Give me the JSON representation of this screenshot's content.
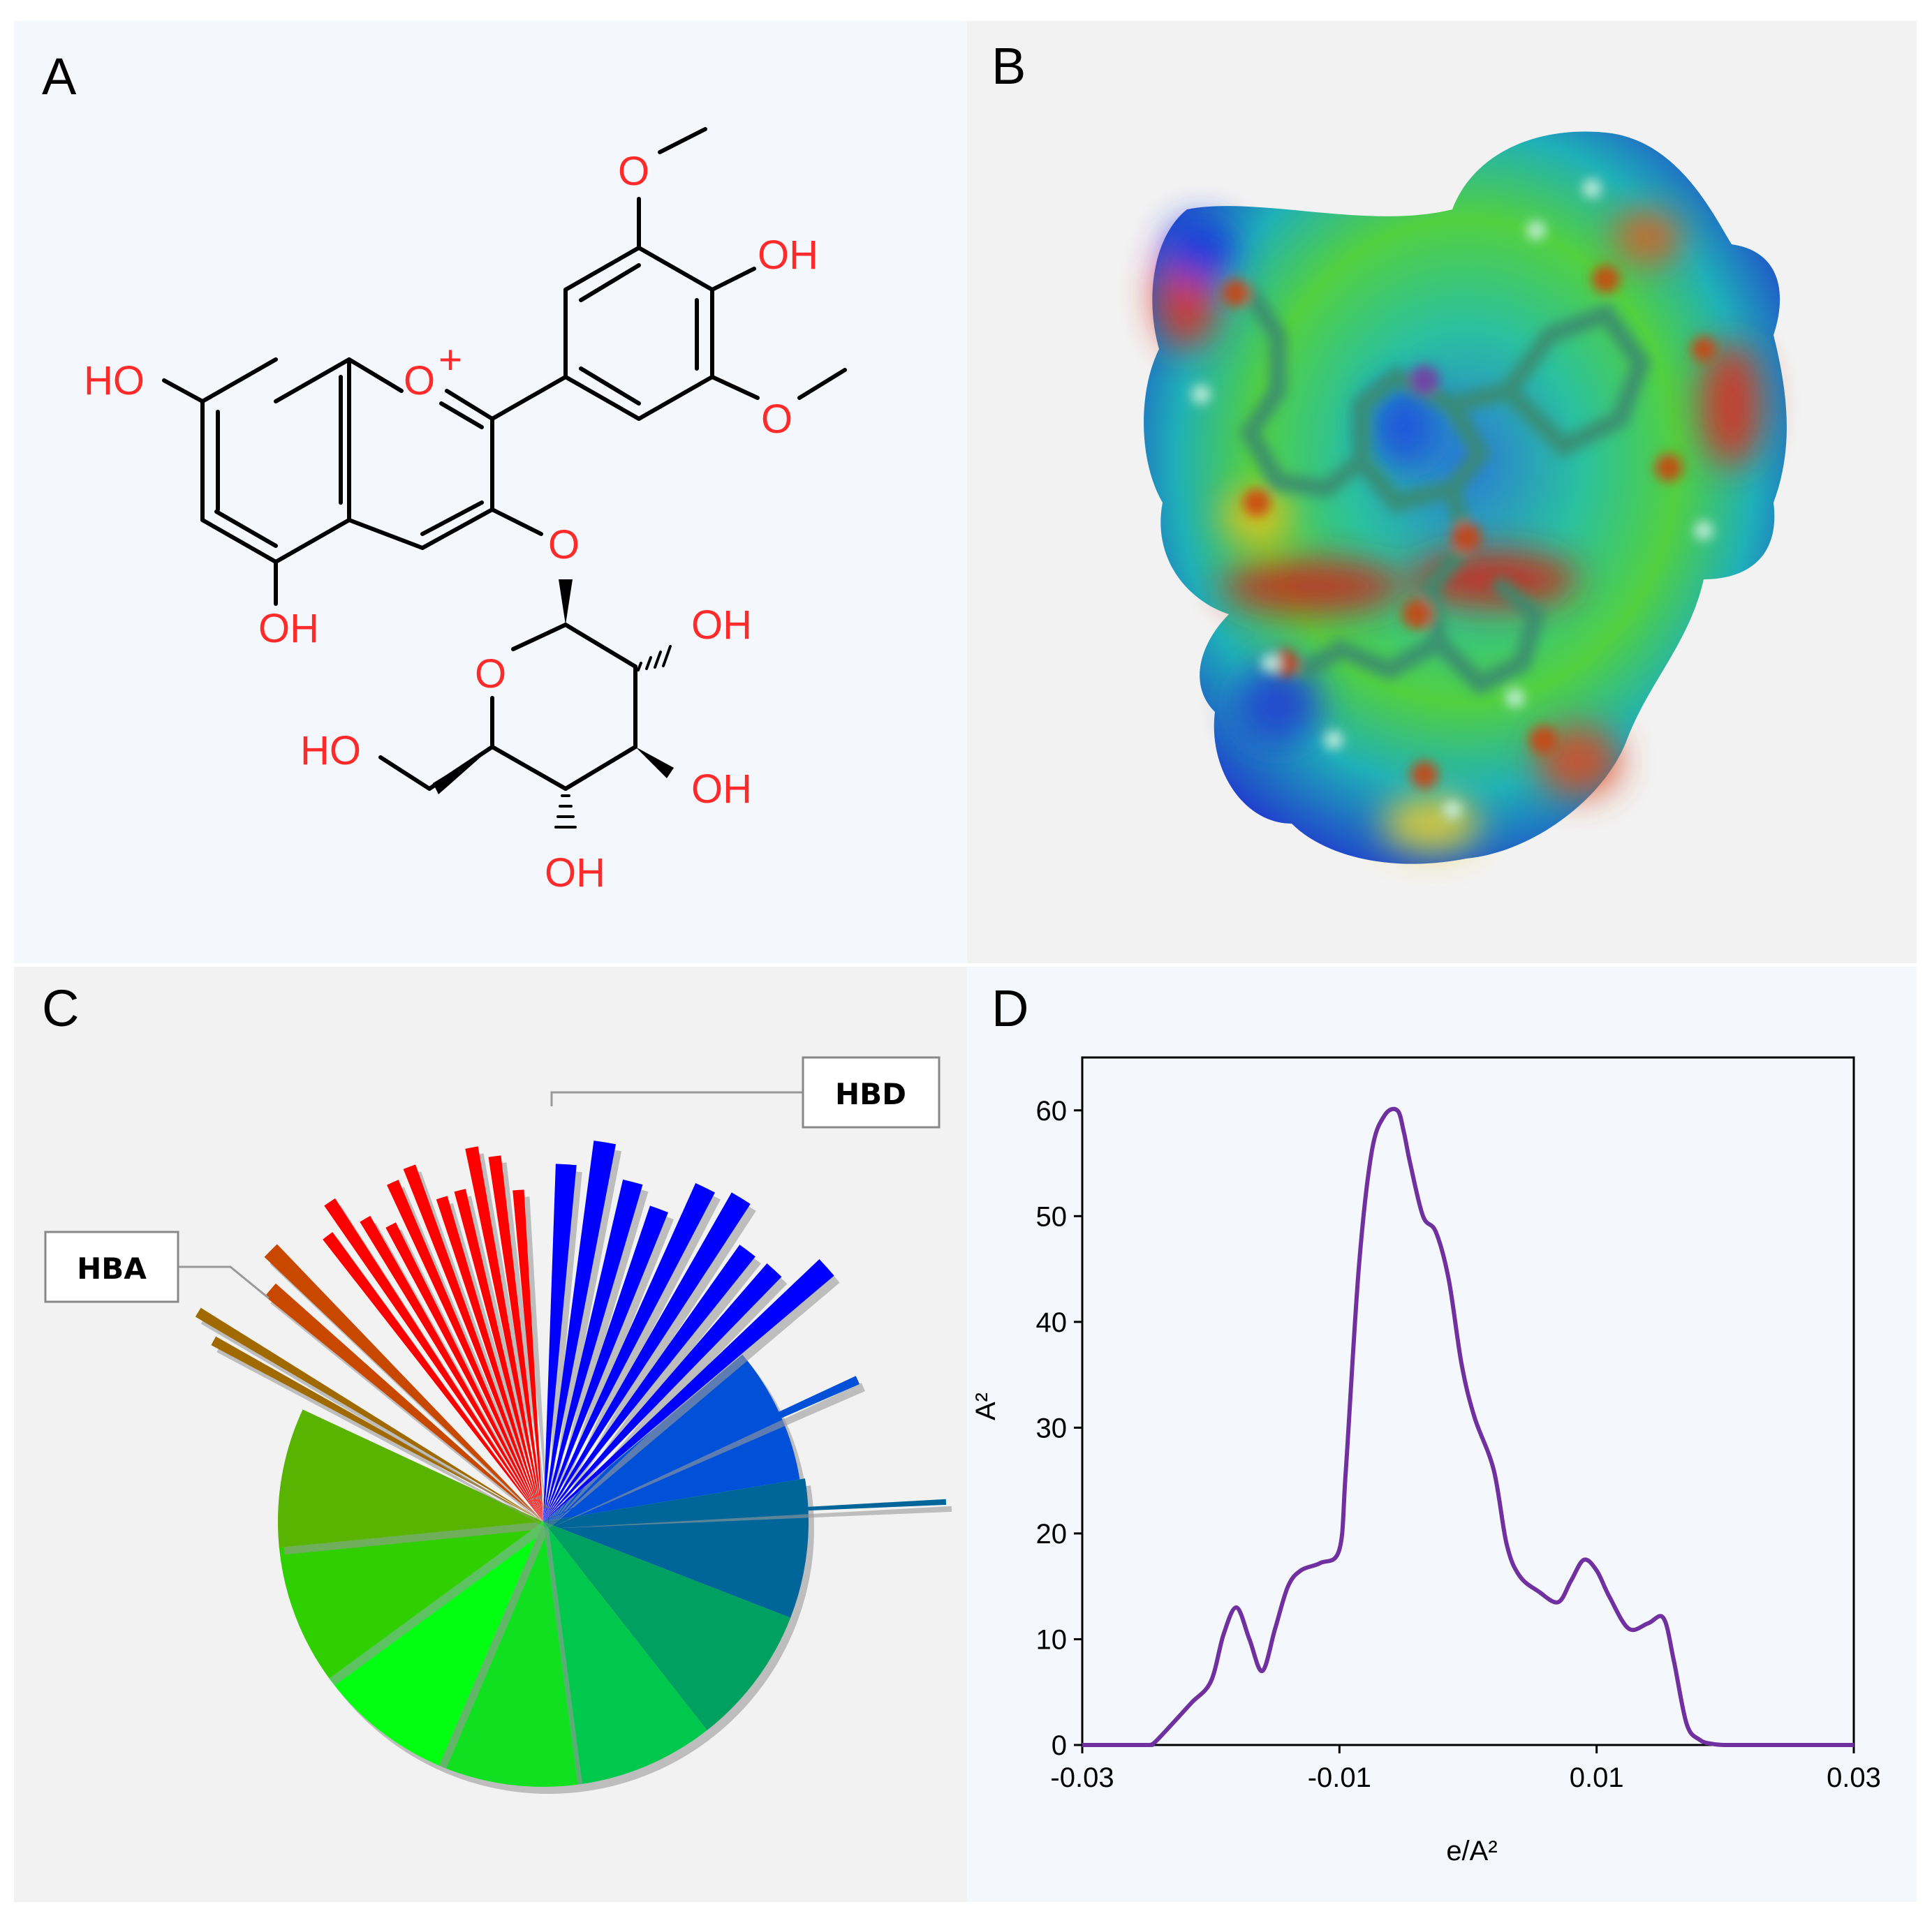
{
  "panels": {
    "A": {
      "letter": "A"
    },
    "B": {
      "letter": "B"
    },
    "C": {
      "letter": "C"
    },
    "D": {
      "letter": "D"
    }
  },
  "molecule": {
    "labels": [
      "HO",
      "OH",
      "O",
      "+",
      "O",
      "OH",
      "O",
      "O",
      "O",
      "OH",
      "HO",
      "OH",
      "OH"
    ],
    "colors": {
      "heteroatom": "#ff2a2a",
      "bond": "#000000"
    }
  },
  "colors": {
    "panel_light": "#f4f7fc",
    "panel_gray": "#f2f2f2",
    "curve": "#7030a0"
  },
  "chart_data": [
    {
      "type": "pie",
      "labels": [
        "HBD",
        "HBA"
      ],
      "slices": [
        {
          "color": "#0050d8",
          "radius": 0.98
        },
        {
          "color": "#006699",
          "radius": 1.0
        },
        {
          "color": "#00a060",
          "radius": 1.0
        },
        {
          "color": "#00c84c",
          "radius": 1.0
        },
        {
          "color": "#10e020",
          "radius": 1.0
        },
        {
          "color": "#00ff10",
          "radius": 1.0
        },
        {
          "color": "#30d000",
          "radius": 1.0
        },
        {
          "color": "#58b400",
          "radius": 1.0
        }
      ],
      "spikes": [
        {
          "color": "#ff0000",
          "count": 11
        },
        {
          "color": "#0000ff",
          "count": 9
        },
        {
          "color": "#c84800",
          "count": 2
        },
        {
          "color": "#a06a00",
          "count": 2
        }
      ]
    },
    {
      "type": "line",
      "xlabel": "e/A²",
      "ylabel": "A²",
      "xlim": [
        -0.03,
        0.03
      ],
      "ylim": [
        0,
        65
      ],
      "xticks": [
        -0.03,
        -0.01,
        0.01,
        0.03
      ],
      "xtick_labels": [
        "-0.03",
        "-0.01",
        "0.01",
        "0.03"
      ],
      "yticks": [
        0,
        10,
        20,
        30,
        40,
        50,
        60
      ],
      "series": [
        {
          "color": "#7030a0",
          "x": [
            -0.03,
            -0.025,
            -0.0245,
            -0.023,
            -0.0215,
            -0.02,
            -0.019,
            -0.018,
            -0.017,
            -0.016,
            -0.015,
            -0.014,
            -0.013,
            -0.0115,
            -0.01,
            -0.0095,
            -0.0085,
            -0.0075,
            -0.0065,
            -0.0055,
            -0.005,
            -0.0045,
            -0.0035,
            -0.0025,
            -0.0015,
            -0.0005,
            0.0005,
            0.002,
            0.003,
            0.004,
            0.0055,
            0.007,
            0.008,
            0.009,
            0.01,
            0.011,
            0.0125,
            0.014,
            0.0152,
            0.016,
            0.017,
            0.018,
            0.019,
            0.02,
            0.022,
            0.03
          ],
          "y": [
            0,
            0,
            0.1,
            2,
            4,
            6,
            10.5,
            13,
            10,
            7,
            11,
            15,
            16.5,
            17.2,
            18.5,
            26,
            45,
            56,
            59.5,
            60,
            58,
            55,
            50,
            48.5,
            44,
            36,
            31,
            26,
            19,
            16,
            14.5,
            13.5,
            15.5,
            17.5,
            16.5,
            14,
            11,
            11.5,
            12,
            8,
            2,
            0.5,
            0.1,
            0,
            0,
            0
          ]
        }
      ]
    }
  ]
}
